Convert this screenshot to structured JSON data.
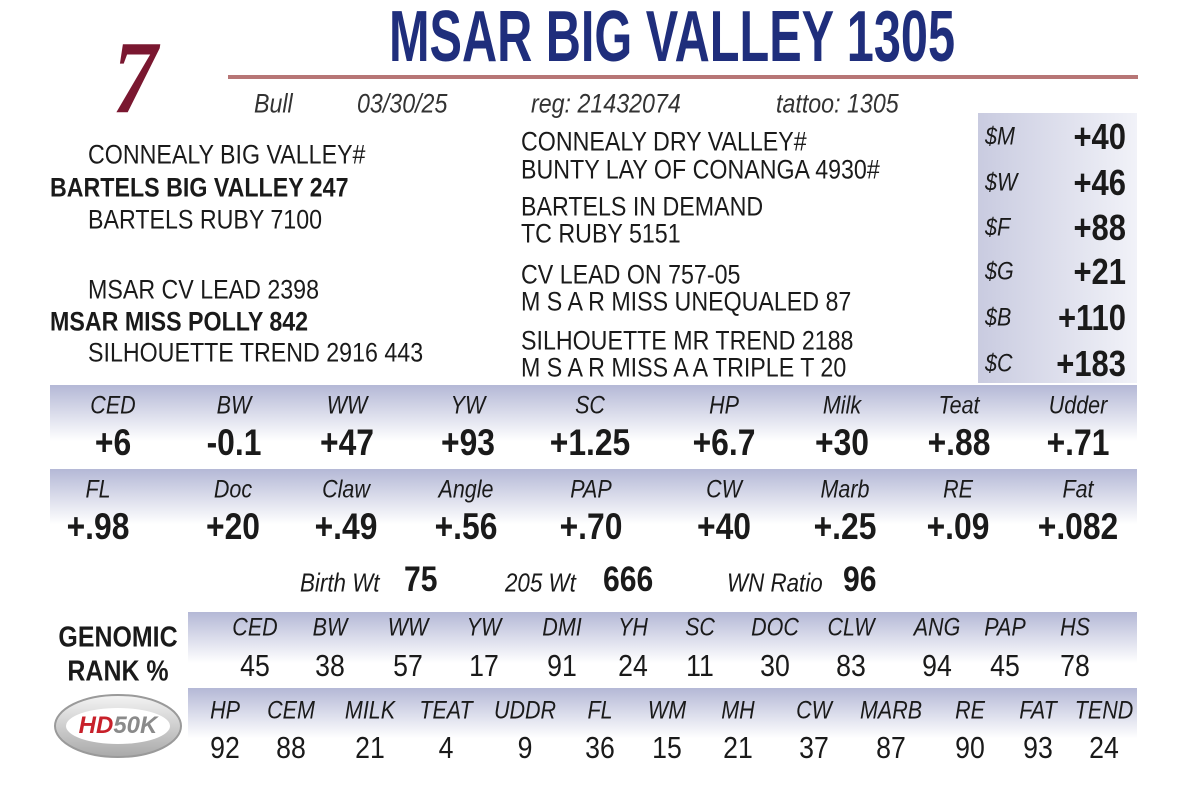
{
  "lot": "7",
  "title": "MSAR BIG VALLEY 1305",
  "info": [
    "Bull",
    "03/30/25",
    "reg: 21432074",
    "tattoo:  1305"
  ],
  "pedigree": {
    "left": [
      "CONNEALY BIG VALLEY#",
      "BARTELS BIG VALLEY 247",
      "BARTELS RUBY 7100",
      "MSAR CV LEAD 2398",
      "MSAR MISS POLLY 842",
      "SILHOUETTE TREND 2916 443"
    ],
    "right": [
      "CONNEALY DRY VALLEY#",
      "BUNTY LAY OF CONANGA 4930#",
      "BARTELS IN DEMAND",
      "TC RUBY 5151",
      "CV LEAD ON 757-05",
      "M S A R MISS UNEQUALED 87",
      "SILHOUETTE MR TREND 2188",
      "M S A R MISS A A TRIPLE T 20"
    ]
  },
  "indexes": [
    {
      "label": "$M",
      "value": "+40"
    },
    {
      "label": "$W",
      "value": "+46"
    },
    {
      "label": "$F",
      "value": "+88"
    },
    {
      "label": "$G",
      "value": "+21"
    },
    {
      "label": "$B",
      "value": "+110"
    },
    {
      "label": "$C",
      "value": "+183"
    }
  ],
  "epds": [
    [
      {
        "label": "CED",
        "value": "+6"
      },
      {
        "label": "BW",
        "value": "-0.1"
      },
      {
        "label": "WW",
        "value": "+47"
      },
      {
        "label": "YW",
        "value": "+93"
      },
      {
        "label": "SC",
        "value": "+1.25"
      },
      {
        "label": "HP",
        "value": "+6.7"
      },
      {
        "label": "Milk",
        "value": "+30"
      },
      {
        "label": "Teat",
        "value": "+.88"
      },
      {
        "label": "Udder",
        "value": "+.71"
      }
    ],
    [
      {
        "label": "FL",
        "value": "+.98"
      },
      {
        "label": "Doc",
        "value": "+20"
      },
      {
        "label": "Claw",
        "value": "+.49"
      },
      {
        "label": "Angle",
        "value": "+.56"
      },
      {
        "label": "PAP",
        "value": "+.70"
      },
      {
        "label": "CW",
        "value": "+40"
      },
      {
        "label": "Marb",
        "value": "+.25"
      },
      {
        "label": "RE",
        "value": "+.09"
      },
      {
        "label": "Fat",
        "value": "+.082"
      }
    ]
  ],
  "weights": [
    {
      "label": "Birth Wt",
      "value": "75"
    },
    {
      "label": "205 Wt",
      "value": "666"
    },
    {
      "label": "WN Ratio",
      "value": "96"
    }
  ],
  "genomic": {
    "title": [
      "GENOMIC",
      "RANK %"
    ],
    "rows": [
      [
        {
          "label": "CED",
          "value": 45
        },
        {
          "label": "BW",
          "value": 38
        },
        {
          "label": "WW",
          "value": 57
        },
        {
          "label": "YW",
          "value": 17
        },
        {
          "label": "DMI",
          "value": 91
        },
        {
          "label": "YH",
          "value": 24
        },
        {
          "label": "SC",
          "value": 11
        },
        {
          "label": "DOC",
          "value": 30
        },
        {
          "label": "CLW",
          "value": 83
        },
        {
          "label": "ANG",
          "value": 94
        },
        {
          "label": "PAP",
          "value": 45
        },
        {
          "label": "HS",
          "value": 78
        }
      ],
      [
        {
          "label": "HP",
          "value": 92
        },
        {
          "label": "CEM",
          "value": 88
        },
        {
          "label": "MILK",
          "value": 21
        },
        {
          "label": "TEAT",
          "value": 4
        },
        {
          "label": "UDDR",
          "value": 9
        },
        {
          "label": "FL",
          "value": 36
        },
        {
          "label": "WM",
          "value": 15
        },
        {
          "label": "MH",
          "value": 21
        },
        {
          "label": "CW",
          "value": 37
        },
        {
          "label": "MARB",
          "value": 87
        },
        {
          "label": "RE",
          "value": 90
        },
        {
          "label": "FAT",
          "value": 93
        },
        {
          "label": "TEND",
          "value": 24
        }
      ]
    ]
  },
  "logo": {
    "hd": "HD",
    "k": "50K"
  }
}
